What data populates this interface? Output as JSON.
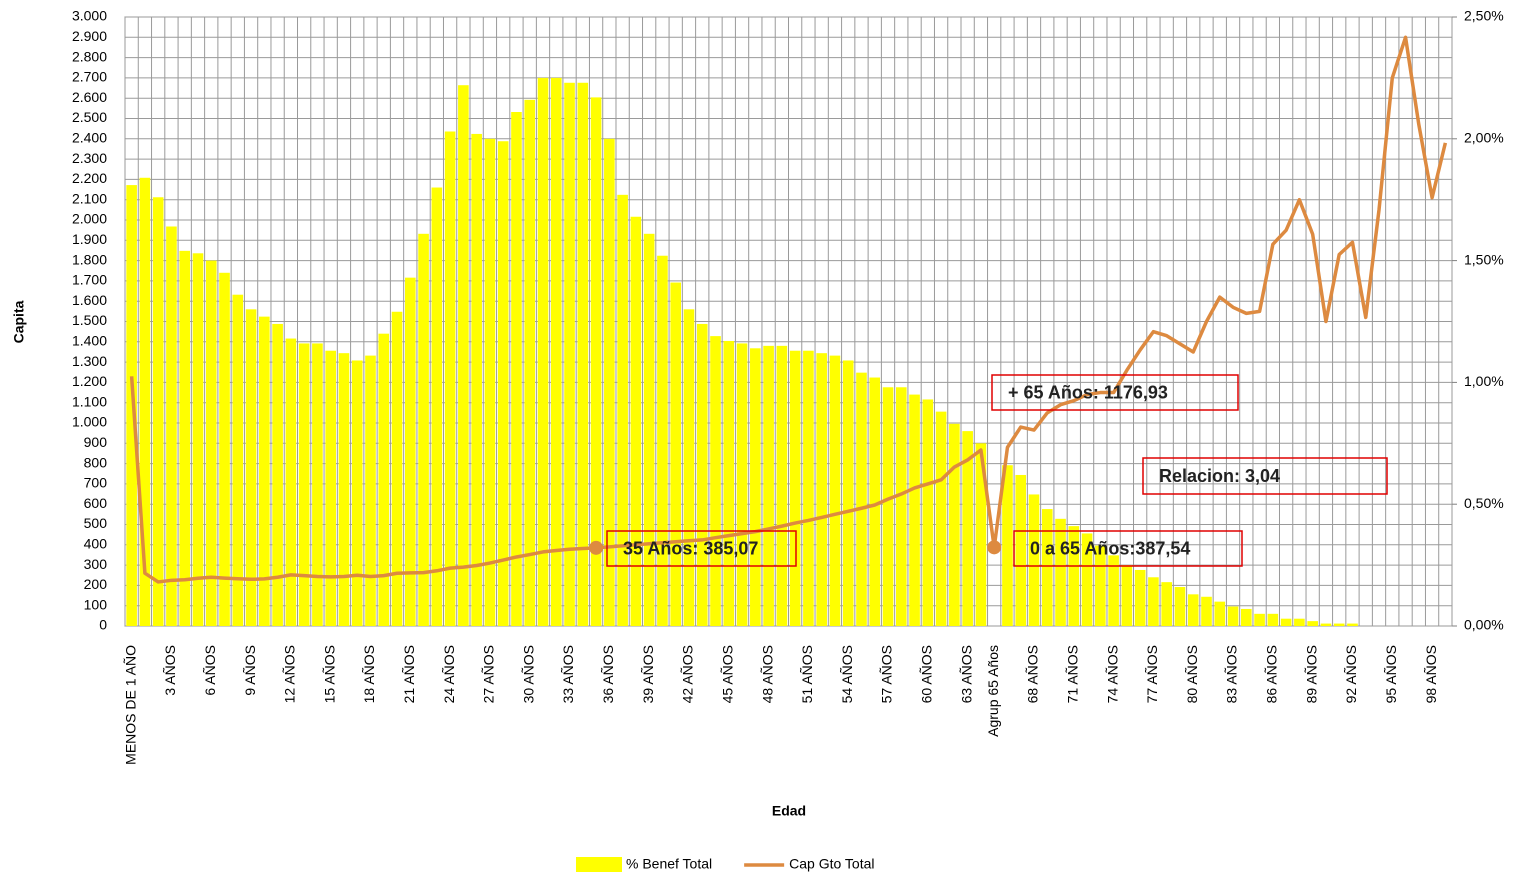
{
  "chart_data": {
    "type": "combo",
    "x_label": "Edad",
    "y_label": "Capita",
    "categories": [
      "MENOS DE 1 AÑO",
      null,
      null,
      "3 AÑOS",
      null,
      null,
      "6 AÑOS",
      null,
      null,
      "9 AÑOS",
      null,
      null,
      "12 AÑOS",
      null,
      null,
      "15 AÑOS",
      null,
      null,
      "18 AÑOS",
      null,
      null,
      "21 AÑOS",
      null,
      null,
      "24 AÑOS",
      null,
      null,
      "27 AÑOS",
      null,
      null,
      "30 AÑOS",
      null,
      null,
      "33 AÑOS",
      null,
      null,
      "36 AÑOS",
      null,
      null,
      "39 AÑOS",
      null,
      null,
      "42 AÑOS",
      null,
      null,
      "45 AÑOS",
      null,
      null,
      "48 AÑOS",
      null,
      null,
      "51 AÑOS",
      null,
      null,
      "54 AÑOS",
      null,
      null,
      "57 AÑOS",
      null,
      null,
      "60 AÑOS",
      null,
      null,
      "63 AÑOS",
      null,
      "Agrup 65 Años",
      null,
      null,
      "68 AÑOS",
      null,
      null,
      "71 AÑOS",
      null,
      null,
      "74 AÑOS",
      null,
      null,
      "77 AÑOS",
      null,
      null,
      "80 AÑOS",
      null,
      null,
      "83 AÑOS",
      null,
      null,
      "86 AÑOS",
      null,
      null,
      "89 AÑOS",
      null,
      null,
      "92 AÑOS",
      null,
      null,
      "95 AÑOS",
      null,
      null,
      "98 AÑOS",
      null
    ],
    "series": [
      {
        "name": "% Benef Total",
        "type": "bar",
        "axis": "y2",
        "color": "#ffff00",
        "values": [
          1.81,
          1.84,
          1.76,
          1.64,
          1.54,
          1.53,
          1.5,
          1.45,
          1.36,
          1.3,
          1.27,
          1.24,
          1.18,
          1.16,
          1.16,
          1.13,
          1.12,
          1.09,
          1.11,
          1.2,
          1.29,
          1.43,
          1.61,
          1.8,
          2.03,
          2.22,
          2.02,
          2.0,
          1.99,
          2.11,
          2.16,
          2.25,
          2.25,
          2.23,
          2.23,
          2.17,
          2.0,
          1.77,
          1.68,
          1.61,
          1.52,
          1.41,
          1.3,
          1.24,
          1.19,
          1.17,
          1.16,
          1.14,
          1.15,
          1.15,
          1.13,
          1.13,
          1.12,
          1.11,
          1.09,
          1.04,
          1.02,
          0.98,
          0.98,
          0.95,
          0.93,
          0.88,
          0.83,
          0.8,
          0.75,
          0,
          0.66,
          0.62,
          0.54,
          0.48,
          0.44,
          0.41,
          0.38,
          0.33,
          0.29,
          0.25,
          0.23,
          0.2,
          0.18,
          0.16,
          0.13,
          0.12,
          0.1,
          0.08,
          0.07,
          0.05,
          0.05,
          0.03,
          0.03,
          0.02,
          0.01,
          0.01,
          0.01,
          0,
          0,
          0,
          0,
          0,
          0,
          0
        ]
      },
      {
        "name": "Cap Gto Total",
        "type": "line",
        "color": "#dd8a40",
        "values": [
          1230,
          260,
          217,
          225,
          228,
          235,
          240,
          236,
          233,
          230,
          232,
          240,
          252,
          248,
          244,
          242,
          244,
          250,
          244,
          248,
          260,
          262,
          263,
          272,
          285,
          290,
          298,
          310,
          325,
          340,
          352,
          365,
          372,
          378,
          382,
          385.07,
          390,
          395,
          400,
          405,
          410,
          415,
          420,
          424,
          435,
          445,
          455,
          465,
          478,
          492,
          507,
          520,
          535,
          550,
          565,
          580,
          596,
          625,
          650,
          680,
          700,
          720,
          783,
          818,
          867,
          387.54,
          880,
          980,
          965,
          1050,
          1090,
          1110,
          1140,
          1150,
          1150,
          1260,
          1360,
          1450,
          1430,
          1390,
          1350,
          1500,
          1620,
          1570,
          1540,
          1550,
          1880,
          1950,
          2100,
          1930,
          1500,
          1830,
          1890,
          1520,
          2050,
          2700,
          2900,
          2470,
          2110,
          2380
        ]
      }
    ],
    "annotations": [
      "+ 65 Años: 1176,93",
      "Relacion: 3,04",
      "35 Años: 385,07",
      "0 a 65 Años:387,54"
    ],
    "ylim": [
      0,
      3000
    ],
    "yticks": [
      0,
      100,
      200,
      300,
      400,
      500,
      600,
      700,
      800,
      900,
      {
        "value": 1000,
        "label": "1.000"
      },
      {
        "value": 1100,
        "label": "1.100"
      },
      {
        "value": 1200,
        "label": "1.200"
      },
      {
        "value": 1300,
        "label": "1.300"
      },
      {
        "value": 1400,
        "label": "1.400"
      },
      {
        "value": 1500,
        "label": "1.500"
      },
      {
        "value": 1600,
        "label": "1.600"
      },
      {
        "value": 1700,
        "label": "1.700"
      },
      {
        "value": 1800,
        "label": "1.800"
      },
      {
        "value": 1900,
        "label": "1.900"
      },
      {
        "value": 2000,
        "label": "2.000"
      },
      {
        "value": 2100,
        "label": "2.100"
      },
      {
        "value": 2200,
        "label": "2.200"
      },
      {
        "value": 2300,
        "label": "2.300"
      },
      {
        "value": 2400,
        "label": "2.400"
      },
      {
        "value": 2500,
        "label": "2.500"
      },
      {
        "value": 2600,
        "label": "2.600"
      },
      {
        "value": 2700,
        "label": "2.700"
      },
      {
        "value": 2800,
        "label": "2.800"
      },
      {
        "value": 2900,
        "label": "2.900"
      },
      {
        "value": 3000,
        "label": "3.000"
      }
    ],
    "y2lim": [
      0,
      2.5
    ],
    "y2ticks": [
      {
        "value": 0,
        "label": "0,00%"
      },
      {
        "value": 0.5,
        "label": "0,50%"
      },
      {
        "value": 1,
        "label": "1,00%"
      },
      {
        "value": 1.5,
        "label": "1,50%"
      },
      {
        "value": 2,
        "label": "2,00%"
      },
      {
        "value": 2.5,
        "label": "2,50%"
      }
    ],
    "grid": true,
    "legend": "bottom"
  }
}
